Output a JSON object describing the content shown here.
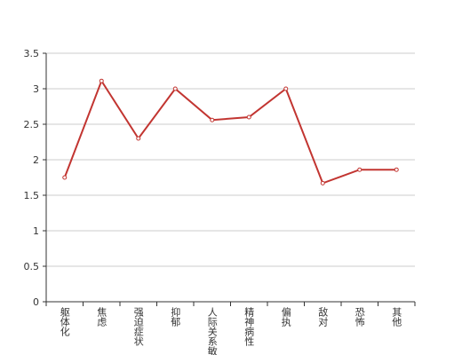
{
  "chart_data": {
    "type": "line",
    "categories": [
      "躯体化",
      "焦虑",
      "强迫症状",
      "抑郁",
      "人际关系敏感",
      "精神病性",
      "偏执",
      "敌对",
      "恐怖",
      "其他"
    ],
    "values": [
      1.75,
      3.11,
      2.3,
      3.0,
      2.56,
      2.6,
      3.0,
      1.67,
      1.86,
      1.86
    ],
    "color": "#c23531",
    "ylim": [
      0,
      3.5
    ],
    "yticks": [
      0,
      0.5,
      1,
      1.5,
      2,
      2.5,
      3,
      3.5
    ],
    "grid": true
  }
}
